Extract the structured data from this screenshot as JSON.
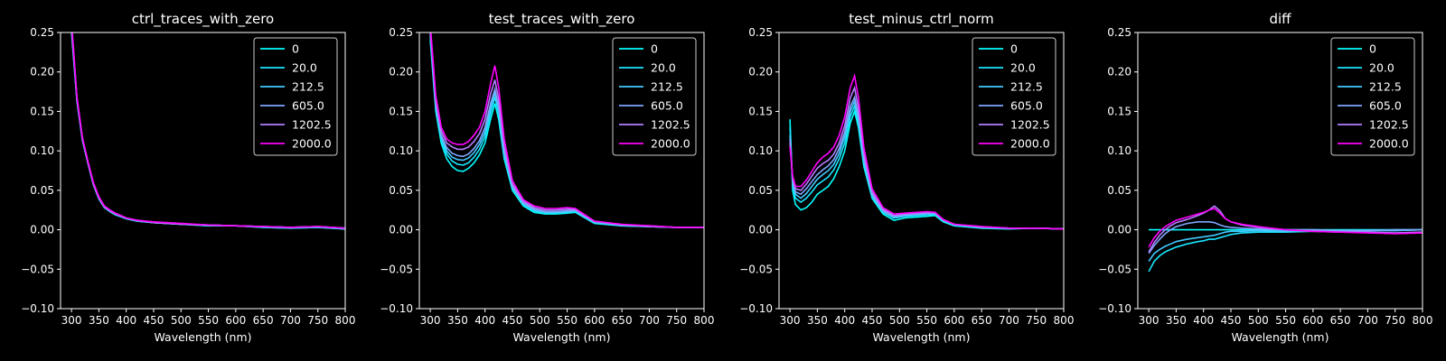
{
  "chart_data": [
    {
      "type": "line",
      "title": "ctrl_traces_with_zero",
      "xlabel": "Wavelength (nm)",
      "ylabel": "",
      "xlim": [
        280,
        800
      ],
      "ylim": [
        -0.1,
        0.25
      ],
      "xticks": [
        "300",
        "350",
        "400",
        "450",
        "500",
        "550",
        "600",
        "650",
        "700",
        "750",
        "800"
      ],
      "yticks": [
        "−0.10",
        "−0.05",
        "0.00",
        "0.05",
        "0.10",
        "0.15",
        "0.20",
        "0.25"
      ],
      "legend_position": "top-right",
      "x": [
        300,
        310,
        320,
        330,
        340,
        350,
        360,
        370,
        380,
        400,
        420,
        450,
        500,
        550,
        600,
        650,
        700,
        750,
        800
      ],
      "series": [
        {
          "name": "0",
          "color": "#00ffff",
          "values": [
            0.26,
            0.165,
            0.115,
            0.085,
            0.058,
            0.04,
            0.028,
            0.024,
            0.02,
            0.014,
            0.011,
            0.009,
            0.007,
            0.005,
            0.005,
            0.003,
            0.002,
            0.003,
            0.001
          ]
        },
        {
          "name": "20.0",
          "color": "#1ae5ff",
          "values": [
            0.25,
            0.162,
            0.113,
            0.084,
            0.057,
            0.039,
            0.028,
            0.023,
            0.019,
            0.014,
            0.011,
            0.009,
            0.007,
            0.005,
            0.005,
            0.003,
            0.002,
            0.003,
            0.001
          ]
        },
        {
          "name": "212.5",
          "color": "#44c9ff",
          "values": [
            0.255,
            0.164,
            0.114,
            0.085,
            0.058,
            0.04,
            0.029,
            0.024,
            0.02,
            0.014,
            0.011,
            0.009,
            0.007,
            0.006,
            0.005,
            0.004,
            0.003,
            0.004,
            0.002
          ]
        },
        {
          "name": "605.0",
          "color": "#7fa6ff",
          "values": [
            0.26,
            0.166,
            0.116,
            0.086,
            0.059,
            0.041,
            0.03,
            0.025,
            0.021,
            0.015,
            0.012,
            0.009,
            0.007,
            0.006,
            0.005,
            0.004,
            0.003,
            0.004,
            0.002
          ]
        },
        {
          "name": "1202.5",
          "color": "#b27fff",
          "values": [
            0.258,
            0.165,
            0.115,
            0.085,
            0.058,
            0.04,
            0.029,
            0.024,
            0.02,
            0.015,
            0.012,
            0.009,
            0.007,
            0.006,
            0.005,
            0.004,
            0.003,
            0.004,
            0.002
          ]
        },
        {
          "name": "2000.0",
          "color": "#ff00ff",
          "values": [
            0.265,
            0.168,
            0.117,
            0.087,
            0.06,
            0.042,
            0.03,
            0.025,
            0.021,
            0.015,
            0.012,
            0.01,
            0.008,
            0.006,
            0.005,
            0.004,
            0.003,
            0.004,
            0.002
          ]
        }
      ]
    },
    {
      "type": "line",
      "title": "test_traces_with_zero",
      "xlabel": "Wavelength (nm)",
      "ylabel": "",
      "xlim": [
        280,
        800
      ],
      "ylim": [
        -0.1,
        0.25
      ],
      "xticks": [
        "300",
        "350",
        "400",
        "450",
        "500",
        "550",
        "600",
        "650",
        "700",
        "750",
        "800"
      ],
      "yticks": [
        "−0.10",
        "−0.05",
        "0.00",
        "0.05",
        "0.10",
        "0.15",
        "0.20",
        "0.25"
      ],
      "legend_position": "top-right",
      "x": [
        300,
        310,
        320,
        330,
        340,
        350,
        360,
        370,
        380,
        390,
        400,
        410,
        418,
        425,
        435,
        450,
        470,
        490,
        510,
        530,
        550,
        565,
        580,
        600,
        650,
        700,
        750,
        800
      ],
      "series": [
        {
          "name": "0",
          "color": "#00ffff",
          "values": [
            0.24,
            0.15,
            0.11,
            0.09,
            0.08,
            0.075,
            0.074,
            0.078,
            0.085,
            0.095,
            0.11,
            0.14,
            0.16,
            0.14,
            0.09,
            0.05,
            0.03,
            0.022,
            0.02,
            0.02,
            0.021,
            0.022,
            0.016,
            0.008,
            0.005,
            0.004,
            0.003,
            0.003
          ]
        },
        {
          "name": "20.0",
          "color": "#1ae5ff",
          "values": [
            0.245,
            0.155,
            0.115,
            0.096,
            0.087,
            0.083,
            0.082,
            0.085,
            0.092,
            0.102,
            0.118,
            0.148,
            0.168,
            0.148,
            0.095,
            0.053,
            0.032,
            0.024,
            0.021,
            0.021,
            0.022,
            0.023,
            0.017,
            0.009,
            0.005,
            0.004,
            0.003,
            0.003
          ]
        },
        {
          "name": "212.5",
          "color": "#44c9ff",
          "values": [
            0.248,
            0.158,
            0.118,
            0.1,
            0.092,
            0.089,
            0.088,
            0.091,
            0.098,
            0.108,
            0.124,
            0.155,
            0.173,
            0.152,
            0.098,
            0.054,
            0.033,
            0.025,
            0.022,
            0.022,
            0.023,
            0.024,
            0.017,
            0.009,
            0.006,
            0.004,
            0.003,
            0.003
          ]
        },
        {
          "name": "605.0",
          "color": "#7fa6ff",
          "values": [
            0.25,
            0.16,
            0.12,
            0.104,
            0.097,
            0.094,
            0.093,
            0.096,
            0.103,
            0.113,
            0.13,
            0.16,
            0.178,
            0.156,
            0.1,
            0.055,
            0.034,
            0.026,
            0.023,
            0.023,
            0.024,
            0.025,
            0.018,
            0.01,
            0.006,
            0.004,
            0.003,
            0.003
          ]
        },
        {
          "name": "1202.5",
          "color": "#b27fff",
          "values": [
            0.253,
            0.163,
            0.125,
            0.11,
            0.105,
            0.102,
            0.102,
            0.105,
            0.112,
            0.122,
            0.14,
            0.172,
            0.19,
            0.165,
            0.105,
            0.058,
            0.036,
            0.028,
            0.025,
            0.025,
            0.026,
            0.026,
            0.019,
            0.011,
            0.006,
            0.005,
            0.003,
            0.003
          ]
        },
        {
          "name": "2000.0",
          "color": "#ff00ff",
          "values": [
            0.26,
            0.17,
            0.13,
            0.115,
            0.11,
            0.108,
            0.108,
            0.112,
            0.12,
            0.13,
            0.15,
            0.185,
            0.208,
            0.18,
            0.115,
            0.062,
            0.038,
            0.03,
            0.027,
            0.027,
            0.028,
            0.027,
            0.02,
            0.011,
            0.007,
            0.005,
            0.003,
            0.003
          ]
        }
      ]
    },
    {
      "type": "line",
      "title": "test_minus_ctrl_norm",
      "xlabel": "Wavelength (nm)",
      "ylabel": "",
      "xlim": [
        280,
        800
      ],
      "ylim": [
        -0.1,
        0.25
      ],
      "xticks": [
        "300",
        "350",
        "400",
        "450",
        "500",
        "550",
        "600",
        "650",
        "700",
        "750",
        "800"
      ],
      "yticks": [
        "−0.10",
        "−0.05",
        "0.00",
        "0.05",
        "0.10",
        "0.15",
        "0.20",
        "0.25"
      ],
      "legend_position": "top-right",
      "x": [
        300,
        305,
        310,
        320,
        330,
        340,
        350,
        360,
        370,
        380,
        390,
        400,
        410,
        418,
        425,
        435,
        450,
        470,
        490,
        510,
        530,
        550,
        565,
        580,
        600,
        650,
        700,
        750,
        800
      ],
      "series": [
        {
          "name": "0",
          "color": "#00ffff",
          "values": [
            0.14,
            0.05,
            0.032,
            0.025,
            0.028,
            0.035,
            0.045,
            0.05,
            0.055,
            0.065,
            0.08,
            0.1,
            0.135,
            0.15,
            0.13,
            0.08,
            0.04,
            0.02,
            0.012,
            0.015,
            0.016,
            0.017,
            0.018,
            0.01,
            0.005,
            0.002,
            0.001,
            0.002,
            0.001
          ]
        },
        {
          "name": "20.0",
          "color": "#1ae5ff",
          "values": [
            0.13,
            0.055,
            0.04,
            0.035,
            0.04,
            0.048,
            0.057,
            0.062,
            0.067,
            0.076,
            0.09,
            0.11,
            0.143,
            0.157,
            0.136,
            0.085,
            0.042,
            0.022,
            0.015,
            0.017,
            0.018,
            0.019,
            0.019,
            0.011,
            0.006,
            0.003,
            0.002,
            0.002,
            0.001
          ]
        },
        {
          "name": "212.5",
          "color": "#44c9ff",
          "values": [
            0.12,
            0.06,
            0.045,
            0.04,
            0.046,
            0.055,
            0.064,
            0.07,
            0.075,
            0.083,
            0.097,
            0.118,
            0.15,
            0.163,
            0.14,
            0.088,
            0.044,
            0.023,
            0.016,
            0.018,
            0.019,
            0.02,
            0.02,
            0.012,
            0.006,
            0.003,
            0.002,
            0.002,
            0.001
          ]
        },
        {
          "name": "605.0",
          "color": "#7fa6ff",
          "values": [
            0.115,
            0.062,
            0.048,
            0.045,
            0.052,
            0.061,
            0.07,
            0.076,
            0.081,
            0.089,
            0.103,
            0.124,
            0.156,
            0.168,
            0.145,
            0.09,
            0.045,
            0.024,
            0.017,
            0.019,
            0.02,
            0.021,
            0.021,
            0.012,
            0.007,
            0.003,
            0.002,
            0.002,
            0.001
          ]
        },
        {
          "name": "1202.5",
          "color": "#b27fff",
          "values": [
            0.11,
            0.065,
            0.052,
            0.05,
            0.058,
            0.068,
            0.078,
            0.084,
            0.088,
            0.096,
            0.11,
            0.132,
            0.167,
            0.18,
            0.155,
            0.096,
            0.048,
            0.026,
            0.018,
            0.02,
            0.021,
            0.022,
            0.022,
            0.013,
            0.007,
            0.004,
            0.002,
            0.002,
            0.001
          ]
        },
        {
          "name": "2000.0",
          "color": "#ff00ff",
          "values": [
            0.105,
            0.068,
            0.055,
            0.055,
            0.063,
            0.074,
            0.085,
            0.092,
            0.097,
            0.105,
            0.12,
            0.143,
            0.18,
            0.195,
            0.168,
            0.104,
            0.052,
            0.028,
            0.02,
            0.021,
            0.022,
            0.023,
            0.022,
            0.013,
            0.007,
            0.004,
            0.002,
            0.002,
            0.001
          ]
        }
      ]
    },
    {
      "type": "line",
      "title": "diff",
      "xlabel": "Wavelength (nm)",
      "ylabel": "",
      "xlim": [
        280,
        800
      ],
      "ylim": [
        -0.1,
        0.25
      ],
      "xticks": [
        "300",
        "350",
        "400",
        "450",
        "500",
        "550",
        "600",
        "650",
        "700",
        "750",
        "800"
      ],
      "yticks": [
        "−0.10",
        "−0.05",
        "0.00",
        "0.05",
        "0.10",
        "0.15",
        "0.20",
        "0.25"
      ],
      "legend_position": "top-right",
      "x": [
        300,
        310,
        320,
        330,
        340,
        350,
        370,
        390,
        400,
        410,
        420,
        430,
        440,
        450,
        470,
        500,
        550,
        600,
        650,
        700,
        750,
        800
      ],
      "series": [
        {
          "name": "0",
          "color": "#00ffff",
          "values": [
            0,
            0,
            0,
            0,
            0,
            0,
            0,
            0,
            0,
            0,
            0,
            0,
            0,
            0,
            0,
            0,
            0,
            0,
            0,
            0,
            0,
            0
          ]
        },
        {
          "name": "20.0",
          "color": "#1ae5ff",
          "values": [
            -0.053,
            -0.04,
            -0.033,
            -0.028,
            -0.025,
            -0.022,
            -0.018,
            -0.015,
            -0.014,
            -0.012,
            -0.012,
            -0.01,
            -0.008,
            -0.006,
            -0.004,
            -0.003,
            -0.003,
            -0.002,
            -0.002,
            -0.001,
            -0.001,
            0
          ]
        },
        {
          "name": "212.5",
          "color": "#44c9ff",
          "values": [
            -0.04,
            -0.03,
            -0.025,
            -0.021,
            -0.018,
            -0.015,
            -0.012,
            -0.01,
            -0.009,
            -0.008,
            -0.007,
            -0.005,
            -0.003,
            -0.002,
            -0.002,
            -0.001,
            -0.002,
            -0.001,
            -0.001,
            -0.001,
            -0.001,
            0
          ]
        },
        {
          "name": "605.0",
          "color": "#7fa6ff",
          "values": [
            -0.03,
            -0.02,
            -0.012,
            -0.005,
            0,
            0.004,
            0.008,
            0.01,
            0.01,
            0.01,
            0.009,
            0.006,
            0.004,
            0.003,
            0.002,
            0.001,
            0,
            0,
            -0.001,
            -0.001,
            0,
            0
          ]
        },
        {
          "name": "1202.5",
          "color": "#b27fff",
          "values": [
            -0.028,
            -0.016,
            -0.007,
            0,
            0.005,
            0.009,
            0.013,
            0.018,
            0.021,
            0.025,
            0.03,
            0.024,
            0.014,
            0.01,
            0.006,
            0.003,
            0,
            -0.002,
            -0.003,
            -0.003,
            -0.004,
            -0.003
          ]
        },
        {
          "name": "2000.0",
          "color": "#ff00ff",
          "values": [
            -0.022,
            -0.01,
            -0.002,
            0.004,
            0.008,
            0.012,
            0.016,
            0.02,
            0.022,
            0.025,
            0.027,
            0.021,
            0.014,
            0.01,
            0.007,
            0.004,
            0,
            -0.002,
            -0.003,
            -0.004,
            -0.005,
            -0.004
          ]
        }
      ]
    }
  ]
}
